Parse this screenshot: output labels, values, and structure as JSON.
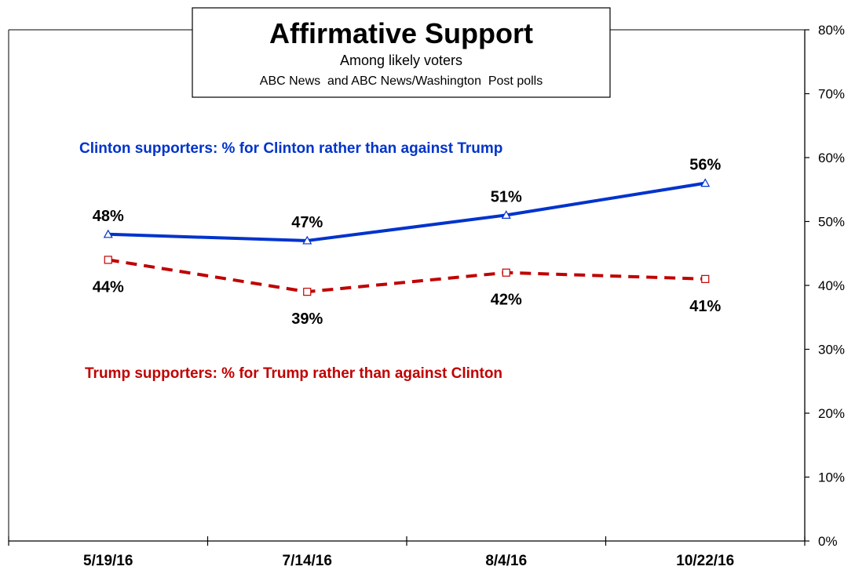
{
  "chart_data": {
    "type": "line",
    "title": "Affirmative Support",
    "subtitle": "Among likely voters",
    "source": "ABC News  and ABC News/Washington  Post polls",
    "categories": [
      "5/19/16",
      "7/14/16",
      "8/4/16",
      "10/22/16"
    ],
    "ylim": [
      0,
      80
    ],
    "yticks": [
      0,
      10,
      20,
      30,
      40,
      50,
      60,
      70,
      80
    ],
    "ytick_labels": [
      "0%",
      "10%",
      "20%",
      "30%",
      "40%",
      "50%",
      "60%",
      "70%",
      "80%"
    ],
    "grid": false,
    "y_axis_side": "right",
    "series": [
      {
        "values": [
          48,
          47,
          51,
          56
        ],
        "labels": [
          "48%",
          "47%",
          "51%",
          "56%"
        ],
        "color": "#0033cc",
        "line_style": "solid",
        "marker": "triangle"
      },
      {
        "values": [
          44,
          39,
          42,
          41
        ],
        "labels": [
          "44%",
          "39%",
          "42%",
          "41%"
        ],
        "color": "#c00000",
        "line_style": "dashed",
        "marker": "square"
      }
    ],
    "annotations": [
      {
        "text": "Clinton supporters: % for Clinton rather than against Trump",
        "color": "#0033cc"
      },
      {
        "text": "Trump supporters: % for Trump rather than against Clinton",
        "color": "#c00000"
      }
    ]
  }
}
